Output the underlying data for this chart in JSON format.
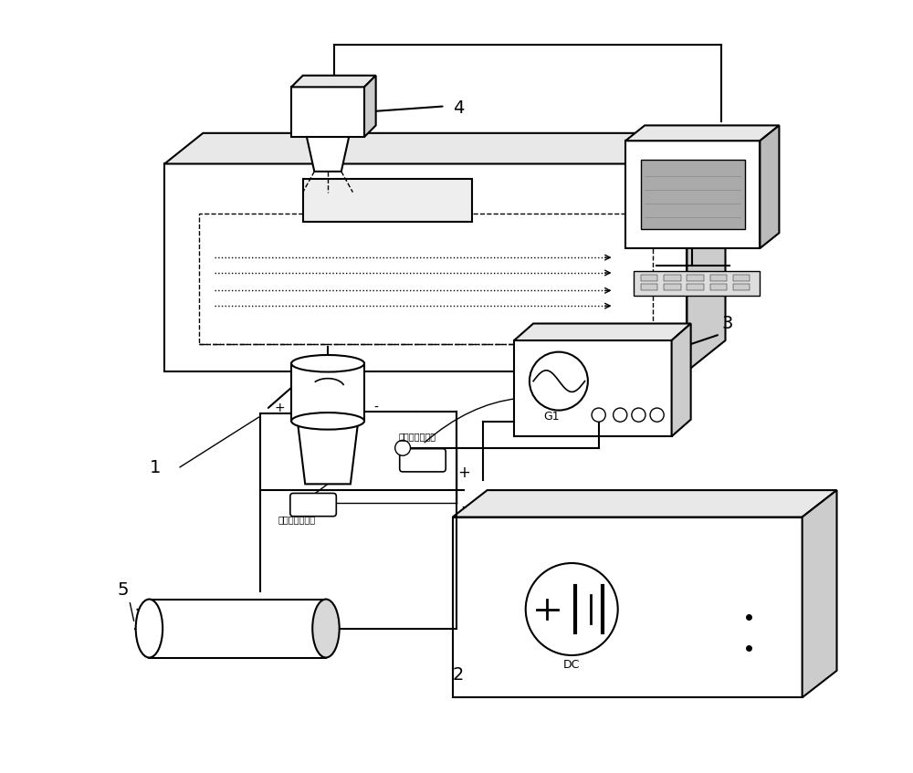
{
  "bg_color": "#ffffff",
  "line_color": "#000000",
  "gray_fill": "#d8d8d8",
  "light_gray": "#e8e8e8",
  "side_gray": "#cccccc",
  "figure_size": [
    10.0,
    8.47
  ],
  "dpi": 100,
  "chinese_current_probe": "示波器电流探头",
  "chinese_hv_probe": "示波器高压探头",
  "label_1": "1",
  "label_2": "2",
  "label_3": "3",
  "label_4": "4",
  "label_5": "5",
  "label_G1": "G1",
  "label_DC": "DC"
}
